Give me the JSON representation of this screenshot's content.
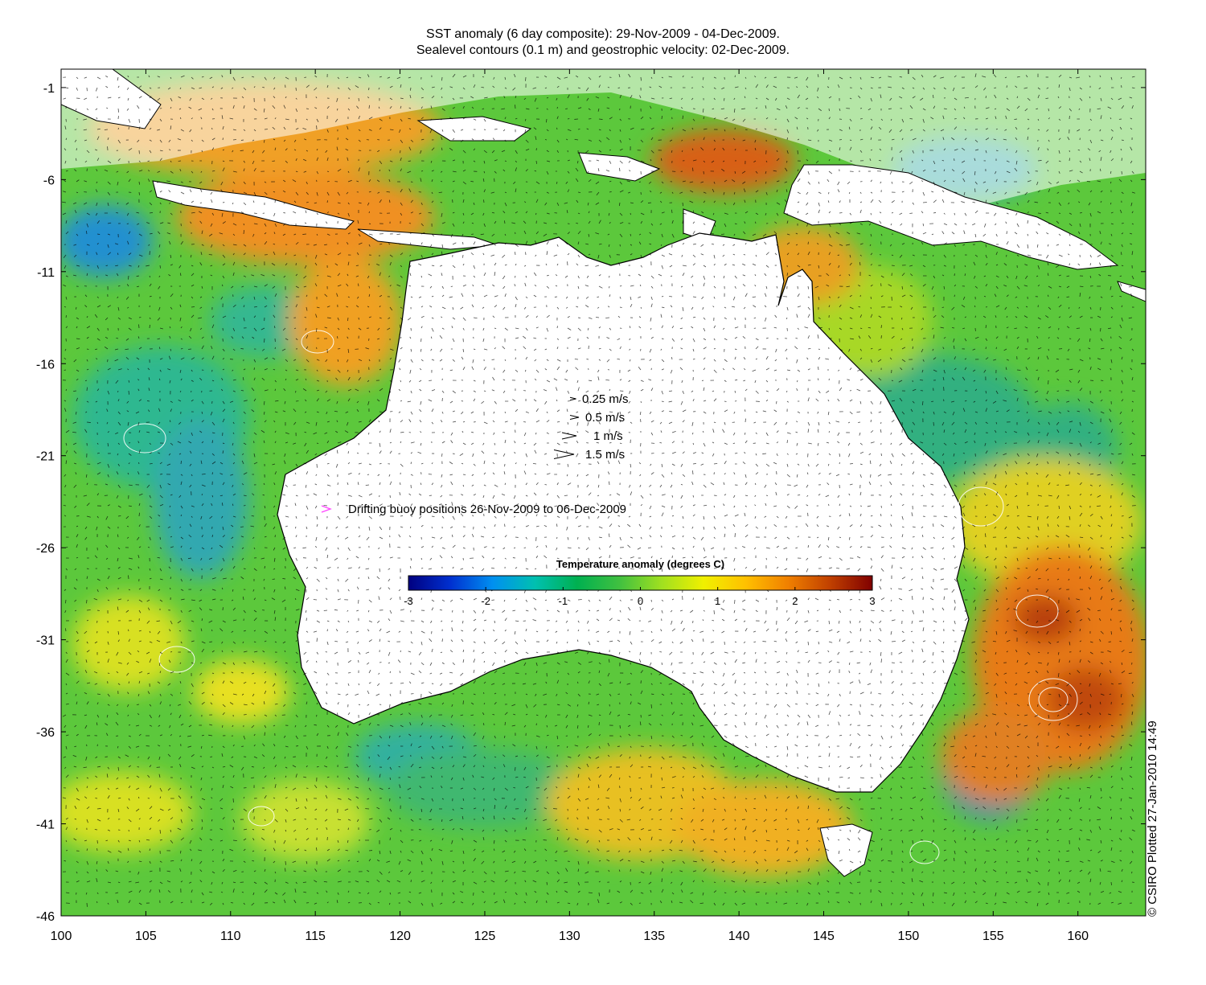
{
  "title": {
    "line1": "SST anomaly (6 day composite): 29-Nov-2009 - 04-Dec-2009.",
    "line2": "Sealevel contours (0.1 m) and geostrophic velocity: 02-Dec-2009."
  },
  "axes": {
    "x_ticks": [
      "100",
      "105",
      "110",
      "115",
      "120",
      "125",
      "130",
      "135",
      "140",
      "145",
      "150",
      "155",
      "160"
    ],
    "y_ticks": [
      "-1",
      "-6",
      "-11",
      "-16",
      "-21",
      "-26",
      "-31",
      "-36",
      "-41",
      "-46"
    ],
    "lon_range": [
      100,
      164
    ],
    "lat_range": [
      -46,
      0
    ]
  },
  "velocity_legend": [
    {
      "label": "0.25 m/s",
      "speed": 0.25
    },
    {
      "label": "0.5 m/s",
      "speed": 0.5
    },
    {
      "label": "1 m/s",
      "speed": 1
    },
    {
      "label": "1.5 m/s",
      "speed": 1.5
    }
  ],
  "buoy_legend": {
    "label": "Drifting buoy positions 26-Nov-2009 to 06-Dec-2009",
    "color": "#ff44ff",
    "marker": "chevron-icon"
  },
  "colorbar": {
    "title": "Temperature anomaly (degrees C)",
    "range": [
      -3,
      3
    ],
    "ticks": [
      "-3",
      "-2",
      "-1",
      "0",
      "1",
      "2",
      "3"
    ],
    "colors": [
      "#000080",
      "#0030d0",
      "#0090f0",
      "#00c0b0",
      "#00b050",
      "#40c040",
      "#a0e020",
      "#f0f000",
      "#ffc000",
      "#f08000",
      "#c04000",
      "#800000"
    ]
  },
  "credit": "© CSIRO Plotted 27-Jan-2010 14:49",
  "colors": {
    "land": "#ffffff",
    "ocean_base": "#5cc83c",
    "coast": "#000000",
    "contour": "#ffffff"
  }
}
